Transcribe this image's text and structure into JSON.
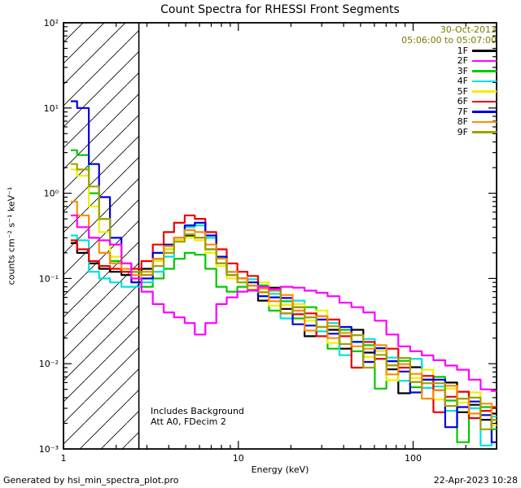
{
  "footer": {
    "left": "Generated by hsi_min_spectra_plot.pro",
    "right": "22-Apr-2023 10:28"
  },
  "annotations": {
    "line1": "Includes Background",
    "line2": "Att A0, FDecim 2"
  },
  "legend": {
    "date": "30-Oct-2013",
    "time_range": "05:06:00 to 05:07:00",
    "header_color": "#7b7b00",
    "position": "top-right"
  },
  "chart_data": {
    "type": "line",
    "step_mode": true,
    "grid": false,
    "title": "Count Spectra for RHESSI Front Segments",
    "xlabel": "Energy (keV)",
    "ylabel": "counts cm⁻² s⁻¹ keV⁻¹",
    "xscale": "log",
    "yscale": "log",
    "xlim": [
      1,
      300
    ],
    "ylim": [
      0.001,
      100
    ],
    "x_major_ticks": [
      1,
      10,
      100
    ],
    "x_major_tick_labels": [
      "1",
      "10",
      "100"
    ],
    "y_major_ticks": [
      0.001,
      0.01,
      0.1,
      1,
      10,
      100
    ],
    "y_major_tick_labels": [
      "10⁻³",
      "10⁻²",
      "10⁻¹",
      "10⁰",
      "10¹",
      "10²"
    ],
    "hatch_region": {
      "x_start": 1,
      "x_end": 2.7
    },
    "x": [
      1.1,
      1.3,
      1.5,
      1.7,
      2.0,
      2.3,
      2.6,
      3.0,
      3.5,
      4.0,
      4.6,
      5.3,
      6.0,
      7.0,
      8.0,
      9.2,
      10.6,
      12,
      14,
      16,
      19,
      22,
      26,
      30,
      35,
      41,
      48,
      56,
      65,
      76,
      89,
      104,
      121,
      141,
      165,
      193,
      225,
      263,
      300
    ],
    "series": [
      {
        "name": "1F",
        "color": "#000000",
        "values": [
          0.26,
          0.2,
          0.15,
          0.13,
          0.12,
          0.11,
          0.12,
          0.13,
          0.17,
          0.22,
          0.28,
          0.32,
          0.3,
          0.22,
          0.15,
          0.11,
          0.1,
          0.082,
          0.055,
          0.078,
          0.044,
          0.046,
          0.021,
          0.036,
          0.025,
          0.015,
          0.025,
          0.0135,
          0.014,
          0.0086,
          0.0045,
          0.0091,
          0.0065,
          0.0049,
          0.006,
          0.0027,
          0.0033,
          0.0022,
          0.0026
        ]
      },
      {
        "name": "2F",
        "color": "#ff00ff",
        "values": [
          0.55,
          0.4,
          0.3,
          0.28,
          0.25,
          0.15,
          0.1,
          0.07,
          0.05,
          0.04,
          0.035,
          0.03,
          0.022,
          0.03,
          0.05,
          0.06,
          0.07,
          0.072,
          0.08,
          0.075,
          0.08,
          0.078,
          0.072,
          0.068,
          0.062,
          0.052,
          0.046,
          0.04,
          0.032,
          0.022,
          0.016,
          0.014,
          0.0125,
          0.011,
          0.0095,
          0.0085,
          0.0065,
          0.005,
          0.0048
        ]
      },
      {
        "name": "3F",
        "color": "#00c800",
        "values": [
          3.2,
          2.8,
          1.0,
          0.5,
          0.16,
          0.12,
          0.09,
          0.08,
          0.1,
          0.13,
          0.17,
          0.2,
          0.19,
          0.13,
          0.08,
          0.07,
          0.08,
          0.074,
          0.083,
          0.042,
          0.054,
          0.034,
          0.046,
          0.027,
          0.015,
          0.025,
          0.014,
          0.0165,
          0.0051,
          0.0096,
          0.0108,
          0.0053,
          0.0065,
          0.007,
          0.0037,
          0.0012,
          0.003,
          0.0031,
          0.0017
        ]
      },
      {
        "name": "4F",
        "color": "#00e0e0",
        "values": [
          0.32,
          0.28,
          0.12,
          0.1,
          0.09,
          0.08,
          0.08,
          0.09,
          0.12,
          0.18,
          0.28,
          0.4,
          0.42,
          0.3,
          0.18,
          0.12,
          0.1,
          0.098,
          0.062,
          0.066,
          0.034,
          0.055,
          0.035,
          0.024,
          0.03,
          0.0126,
          0.018,
          0.0195,
          0.0114,
          0.0118,
          0.0063,
          0.0114,
          0.0052,
          0.0054,
          0.0028,
          0.0047,
          0.003,
          0.0011,
          0.0024
        ]
      },
      {
        "name": "5F",
        "color": "#f0f000",
        "values": [
          1.9,
          1.6,
          0.7,
          0.35,
          0.18,
          0.12,
          0.1,
          0.12,
          0.16,
          0.22,
          0.28,
          0.3,
          0.28,
          0.2,
          0.14,
          0.1,
          0.09,
          0.09,
          0.09,
          0.048,
          0.049,
          0.05,
          0.032,
          0.042,
          0.0175,
          0.021,
          0.0216,
          0.012,
          0.014,
          0.0064,
          0.009,
          0.0068,
          0.0085,
          0.0038,
          0.0051,
          0.0035,
          0.0046,
          0.0028,
          0.0019
        ]
      },
      {
        "name": "6F",
        "color": "#ee0000",
        "values": [
          0.28,
          0.22,
          0.16,
          0.14,
          0.13,
          0.12,
          0.13,
          0.16,
          0.25,
          0.35,
          0.45,
          0.55,
          0.5,
          0.35,
          0.22,
          0.15,
          0.12,
          0.107,
          0.069,
          0.072,
          0.039,
          0.038,
          0.039,
          0.021,
          0.033,
          0.021,
          0.009,
          0.018,
          0.0114,
          0.015,
          0.009,
          0.0061,
          0.0072,
          0.0027,
          0.0041,
          0.0047,
          0.0023,
          0.0028,
          0.0031
        ]
      },
      {
        "name": "7F",
        "color": "#0000dd",
        "values": [
          12,
          10,
          2.2,
          0.9,
          0.3,
          0.15,
          0.09,
          0.1,
          0.2,
          0.25,
          0.3,
          0.42,
          0.45,
          0.32,
          0.18,
          0.12,
          0.1,
          0.09,
          0.062,
          0.06,
          0.059,
          0.029,
          0.028,
          0.033,
          0.0225,
          0.027,
          0.018,
          0.0105,
          0.0152,
          0.0107,
          0.0081,
          0.0046,
          0.0065,
          0.0065,
          0.0018,
          0.0031,
          0.0036,
          0.0025,
          0.0012
        ]
      },
      {
        "name": "8F",
        "color": "#ff8c00",
        "values": [
          0.8,
          0.55,
          0.3,
          0.2,
          0.15,
          0.13,
          0.11,
          0.12,
          0.17,
          0.24,
          0.3,
          0.37,
          0.35,
          0.25,
          0.17,
          0.12,
          0.1,
          0.082,
          0.076,
          0.054,
          0.064,
          0.042,
          0.0245,
          0.036,
          0.02,
          0.023,
          0.016,
          0.015,
          0.0165,
          0.0075,
          0.0099,
          0.0076,
          0.0039,
          0.0049,
          0.0055,
          0.0039,
          0.0026,
          0.0034,
          0.0022
        ]
      },
      {
        "name": "9F",
        "color": "#a0a000",
        "values": [
          2.2,
          1.9,
          1.2,
          0.5,
          0.25,
          0.15,
          0.12,
          0.11,
          0.14,
          0.2,
          0.27,
          0.33,
          0.3,
          0.22,
          0.15,
          0.11,
          0.09,
          0.074,
          0.069,
          0.072,
          0.039,
          0.046,
          0.035,
          0.027,
          0.0275,
          0.017,
          0.0216,
          0.009,
          0.0127,
          0.0096,
          0.0117,
          0.0061,
          0.0059,
          0.0059,
          0.0032,
          0.0039,
          0.004,
          0.0017,
          0.0022
        ]
      }
    ]
  }
}
